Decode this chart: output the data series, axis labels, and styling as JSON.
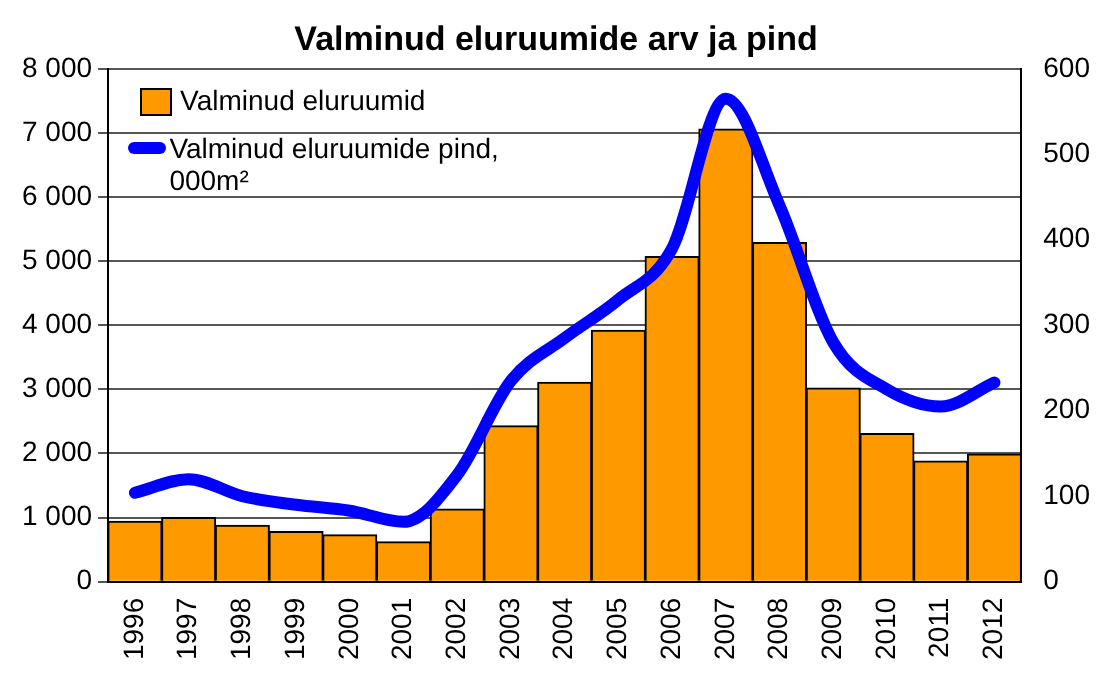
{
  "chart_data": {
    "type": "bar",
    "title": "Valminud eluruumide arv ja pind",
    "categories": [
      "1996",
      "1997",
      "1998",
      "1999",
      "2000",
      "2001",
      "2002",
      "2003",
      "2004",
      "2005",
      "2006",
      "2007",
      "2008",
      "2009",
      "2010",
      "2011",
      "2012"
    ],
    "series": [
      {
        "name": "Valminud eluruumid",
        "color": "#ff9900",
        "values": [
          940,
          1000,
          880,
          780,
          730,
          620,
          1130,
          2430,
          3110,
          3920,
          5070,
          7060,
          5290,
          3020,
          2310,
          1880,
          1990
        ]
      },
      {
        "name": "Valminud eluruumide pind, 000m²",
        "type": "line",
        "axis": "y2",
        "color": "#0000ff",
        "values": [
          104,
          120,
          100,
          90,
          83,
          70,
          125,
          235,
          285,
          330,
          390,
          565,
          440,
          280,
          225,
          205,
          233
        ]
      }
    ],
    "ylim": [
      0,
      8000
    ],
    "yticks": [
      {
        "value": 0,
        "label": "0"
      },
      {
        "value": 1000,
        "label": "1 000"
      },
      {
        "value": 2000,
        "label": "2 000"
      },
      {
        "value": 3000,
        "label": "3 000"
      },
      {
        "value": 4000,
        "label": "4 000"
      },
      {
        "value": 5000,
        "label": "5 000"
      },
      {
        "value": 6000,
        "label": "6 000"
      },
      {
        "value": 7000,
        "label": "7 000"
      },
      {
        "value": 8000,
        "label": "8 000"
      }
    ],
    "y2lim": [
      0,
      600
    ],
    "y2ticks": [
      0,
      100,
      200,
      300,
      400,
      500,
      600
    ],
    "grid": "y",
    "legend": "top left",
    "marker": "none"
  }
}
